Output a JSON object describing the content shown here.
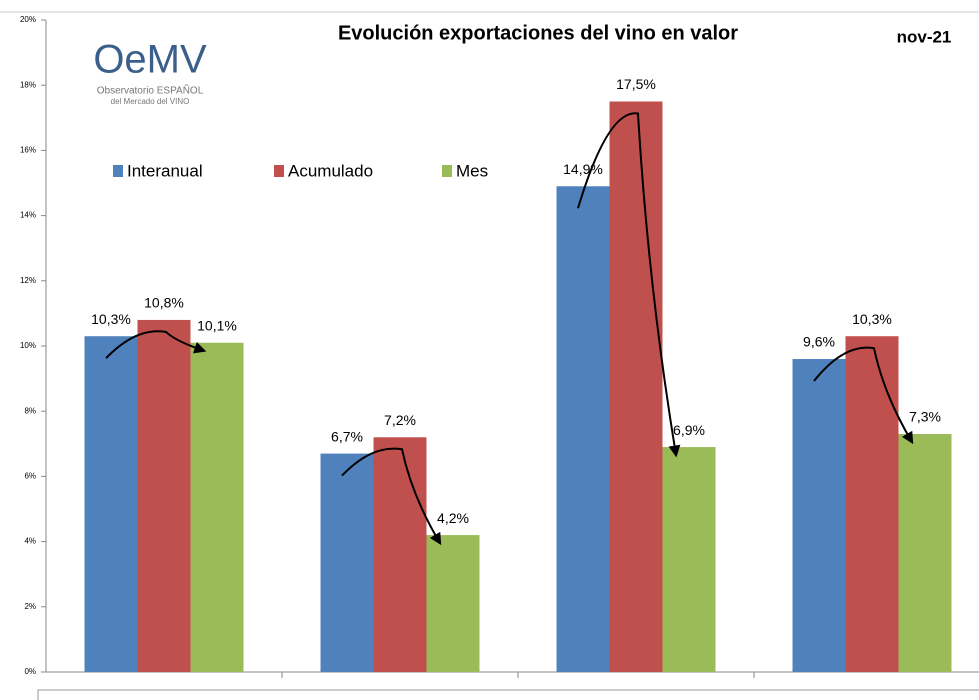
{
  "chart_data": {
    "type": "bar",
    "title": "Evolución exportaciones del vino en valor",
    "annotation": "nov-21",
    "logo": {
      "mark": "OeMV",
      "line1": "Observatorio ESPAÑOL",
      "line2": "del Mercado del VINO"
    },
    "categories": [
      null,
      null,
      null,
      null
    ],
    "series": [
      {
        "name": "Interanual",
        "color": "#4f81bd",
        "values": [
          10.3,
          6.7,
          14.9,
          9.6
        ],
        "value_labels": [
          "10,3%",
          "6,7%",
          "14,9%",
          "9,6%"
        ]
      },
      {
        "name": "Acumulado",
        "color": "#c0504d",
        "values": [
          10.8,
          7.2,
          17.5,
          10.3
        ],
        "value_labels": [
          "10,8%",
          "7,2%",
          "17,5%",
          "10,3%"
        ]
      },
      {
        "name": "Mes",
        "color": "#9bbb59",
        "values": [
          10.1,
          4.2,
          6.9,
          7.3
        ],
        "value_labels": [
          "10,1%",
          "4,2%",
          "6,9%",
          "7,3%"
        ]
      }
    ],
    "ylim": [
      0,
      20
    ],
    "yticks": [
      {
        "value": 0,
        "label": "0%"
      },
      {
        "value": 2,
        "label": "2%"
      },
      {
        "value": 4,
        "label": "4%"
      },
      {
        "value": 6,
        "label": "6%"
      },
      {
        "value": 8,
        "label": "8%"
      },
      {
        "value": 10,
        "label": "10%"
      },
      {
        "value": 12,
        "label": "12%"
      },
      {
        "value": 14,
        "label": "14%"
      },
      {
        "value": 16,
        "label": "16%"
      },
      {
        "value": 18,
        "label": "18%"
      },
      {
        "value": 20,
        "label": "20%"
      }
    ],
    "legend": "top-left"
  }
}
